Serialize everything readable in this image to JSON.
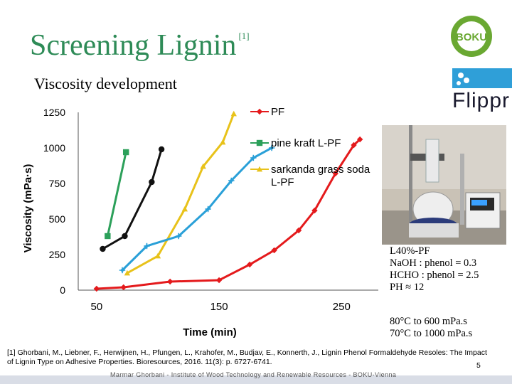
{
  "slide": {
    "title": "Screening Lignin",
    "title_ref": "[1]",
    "subtitle": "Viscosity development",
    "page_number": "5",
    "footer": "Marmar Ghorbani - Institute of Wood Technology and Renewable Resources - BOKU-Vienna",
    "reference": "[1] Ghorbani, M., Liebner, F., Herwijnen, H., Pfungen, L., Krahofer, M., Budjav, E., Konnerth, J., Lignin Phenol Formaldehyde Resoles: The Impact of Lignin Type on Adhesive Properties. Bioresources, 2016. 11(3): p. 6727-6741.",
    "logos": {
      "boku": "BOKU",
      "flippr": "Flippr"
    },
    "conditions": [
      "L40%-PF",
      "NaOH : phenol = 0.3",
      "HCHO : phenol = 2.5",
      "PH ≈ 12"
    ],
    "temperatures": [
      "80°C to 600 mPa.s",
      "70°C to 1000 mPa.s"
    ],
    "colors": {
      "title": "#2e8b57",
      "pf": "#e41a1c",
      "pine": "#2ca05a",
      "sarkanda": "#e8c21a",
      "black": "#111111",
      "blue": "#2aa0d8"
    }
  },
  "chart_data": {
    "type": "line",
    "xlabel": "Time (min)",
    "ylabel": "Viscosity (mPa·s)",
    "xlim": [
      35,
      280
    ],
    "ylim": [
      0,
      1250
    ],
    "xticks": [
      "50",
      "150",
      "250"
    ],
    "yticks": [
      "0",
      "250",
      "500",
      "750",
      "1000",
      "1250"
    ],
    "series": [
      {
        "name": "PF",
        "legend": true,
        "color": "#e41a1c",
        "marker": "diamond",
        "x": [
          50,
          72,
          110,
          150,
          175,
          195,
          215,
          228,
          245,
          260,
          265
        ],
        "y": [
          10,
          20,
          60,
          70,
          180,
          280,
          420,
          560,
          820,
          1020,
          1060
        ]
      },
      {
        "name": "pine kraft L-PF",
        "legend": true,
        "color": "#2ca05a",
        "marker": "square",
        "x": [
          59,
          74
        ],
        "y": [
          380,
          970
        ]
      },
      {
        "name": "sarkanda grass soda L-PF",
        "legend": true,
        "color": "#e8c21a",
        "marker": "triangle",
        "x": [
          75,
          100,
          122,
          137,
          153,
          162
        ],
        "y": [
          120,
          240,
          570,
          870,
          1040,
          1240
        ]
      },
      {
        "name": "",
        "legend": false,
        "color": "#111111",
        "marker": "circle",
        "x": [
          55,
          73,
          95,
          103
        ],
        "y": [
          290,
          380,
          760,
          990
        ]
      },
      {
        "name": "",
        "legend": false,
        "color": "#2aa0d8",
        "marker": "star",
        "x": [
          71,
          91,
          117,
          141,
          160,
          178,
          193
        ],
        "y": [
          140,
          310,
          380,
          570,
          770,
          930,
          1000
        ]
      }
    ]
  }
}
